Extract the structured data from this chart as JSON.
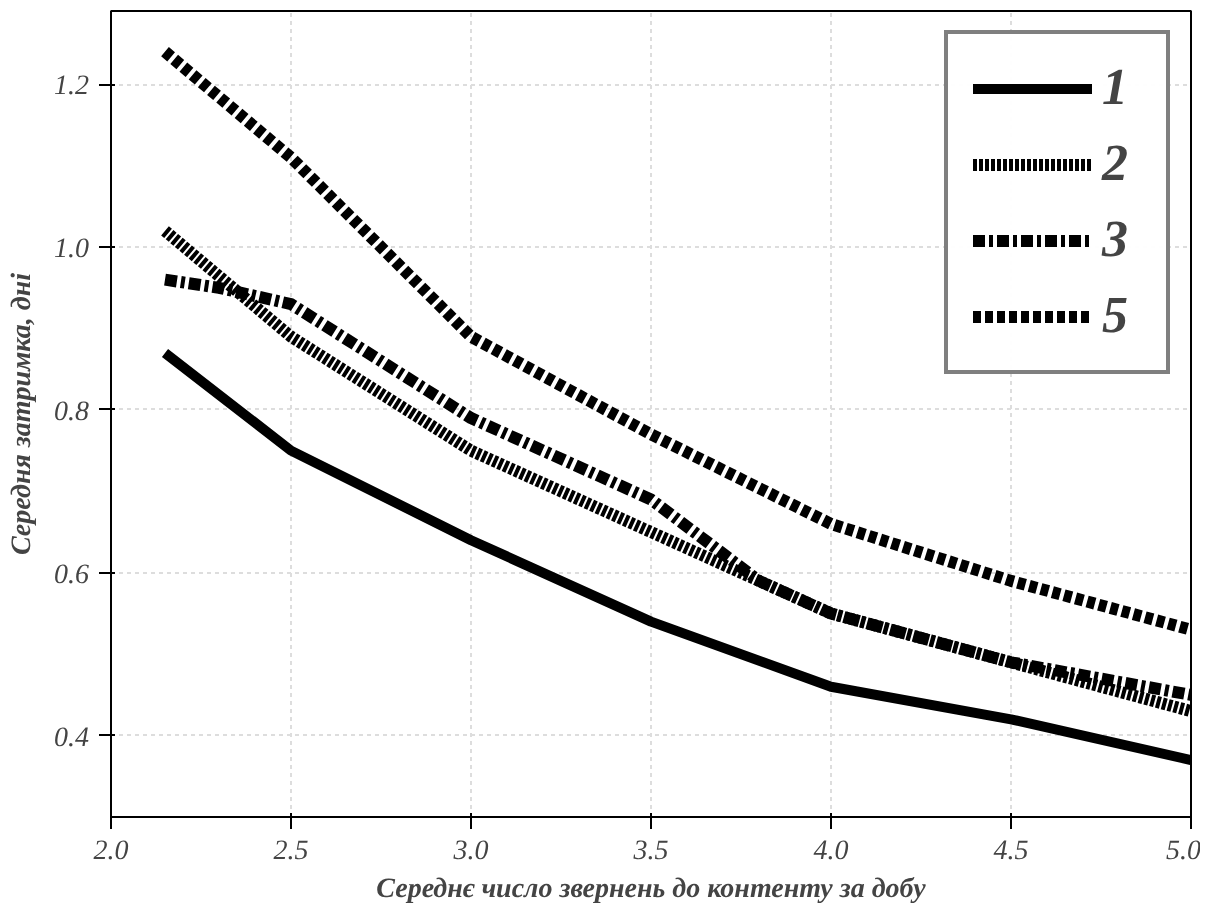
{
  "chart_data": {
    "type": "line",
    "xlabel": "Середнє число звернень до контенту за добу",
    "ylabel": "Середня затримка, дні",
    "xlim": [
      2.0,
      5.0
    ],
    "xticks": [
      {
        "value": 2,
        "label": "2.0"
      },
      2.5,
      {
        "value": 3,
        "label": "3.0"
      },
      3.5,
      {
        "value": 4,
        "label": "4.0"
      },
      4.5,
      {
        "value": 5,
        "label": "5.0"
      }
    ],
    "ylim": [
      0.3,
      1.29
    ],
    "yticks": [
      0.4,
      0.6,
      0.8,
      {
        "value": 1,
        "label": "1.0"
      },
      1.2
    ],
    "grid": true,
    "legend": "top right",
    "marker": "none",
    "series": [
      {
        "name": "1",
        "color": "#000000",
        "line_style": "solid",
        "x": [
          2.15,
          2.5,
          3.0,
          3.5,
          4.0,
          4.5,
          5.0
        ],
        "values": [
          0.87,
          0.75,
          0.64,
          0.54,
          0.46,
          0.42,
          0.37
        ]
      },
      {
        "name": "2",
        "color": "#000000",
        "line_style": "dotted",
        "x": [
          2.15,
          2.5,
          3.0,
          3.5,
          4.0,
          4.5,
          5.0
        ],
        "values": [
          1.02,
          0.89,
          0.75,
          0.65,
          0.55,
          0.49,
          0.43
        ]
      },
      {
        "name": "3",
        "color": "#000000",
        "line_style": "dashdot",
        "x": [
          2.15,
          2.3,
          2.5,
          3.0,
          3.5,
          3.8,
          4.0,
          4.5,
          5.0
        ],
        "values": [
          0.96,
          0.95,
          0.93,
          0.79,
          0.69,
          0.59,
          0.55,
          0.49,
          0.45
        ]
      },
      {
        "name": "5",
        "color": "#000000",
        "line_style": "dashed",
        "x": [
          2.15,
          2.5,
          3.0,
          3.5,
          4.0,
          4.5,
          5.0
        ],
        "values": [
          1.24,
          1.11,
          0.89,
          0.77,
          0.66,
          0.59,
          0.53
        ]
      }
    ]
  }
}
